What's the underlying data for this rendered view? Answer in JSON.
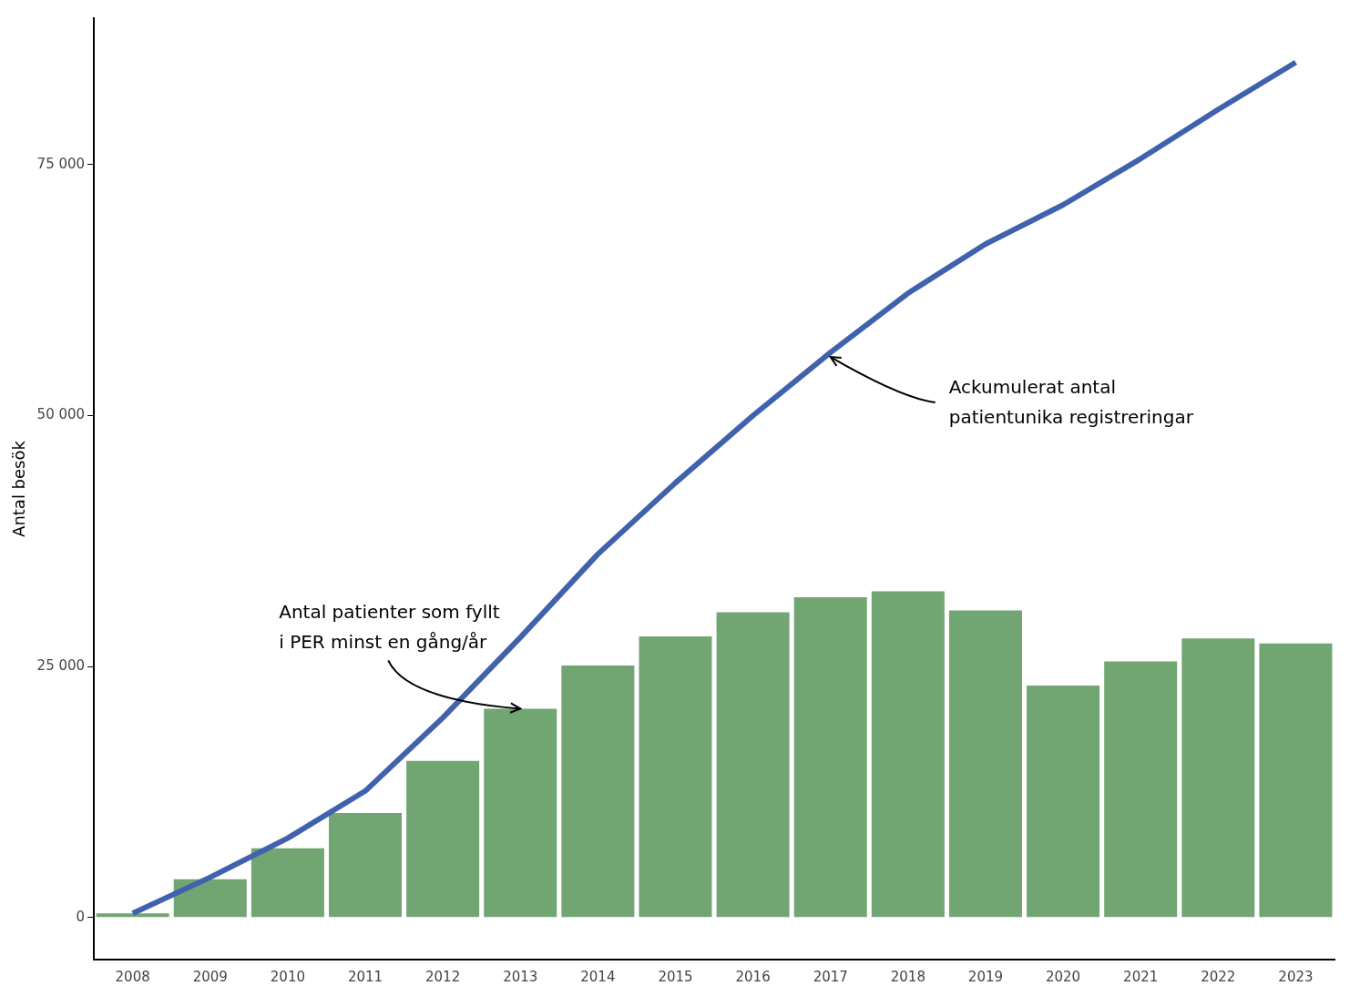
{
  "chart_data": {
    "type": "bar",
    "ylabel": "Antal besök",
    "categories": [
      "2008",
      "2009",
      "2010",
      "2011",
      "2012",
      "2013",
      "2014",
      "2015",
      "2016",
      "2017",
      "2018",
      "2019",
      "2020",
      "2021",
      "2022",
      "2023"
    ],
    "series": [
      {
        "color": "#71a673",
        "values": [
          400,
          3800,
          6900,
          10400,
          15600,
          20800,
          25100,
          28000,
          30400,
          31900,
          32500,
          30600,
          23100,
          25500,
          27800,
          27300
        ]
      },
      {
        "type": "line",
        "color": "#4062ad",
        "marker": "none",
        "values": [
          400,
          4000,
          7900,
          12600,
          19900,
          27900,
          36200,
          43300,
          50000,
          56300,
          62200,
          67100,
          71000,
          75600,
          80500,
          85200
        ]
      }
    ],
    "ylim": [
      -4200,
      89600
    ],
    "yticks": [
      0,
      {
        "value": 25000,
        "label": "25 000"
      },
      {
        "value": 50000,
        "label": "50 000"
      },
      {
        "value": 75000,
        "label": "75 000"
      }
    ],
    "grid": false,
    "legend": false,
    "annotations": [
      {
        "text": "Ackumulerat antal\npatientunika registreringar",
        "x": "2017",
        "y": 56300
      },
      {
        "text": "Antal patienter som fyllt\ni PER minst en gång/år",
        "x": "2013",
        "y": 20800
      }
    ]
  }
}
